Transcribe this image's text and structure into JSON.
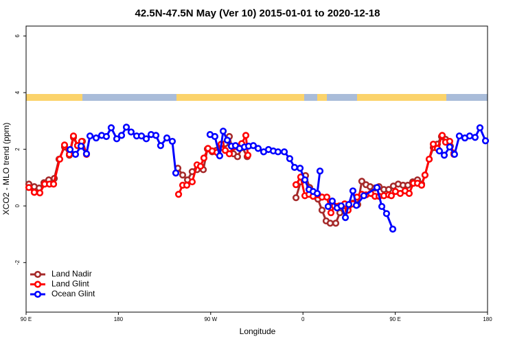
{
  "chart_data": {
    "type": "line",
    "title": "42.5N-47.5N May (Ver 10)   2015-01-01 to 2020-12-18",
    "x_label": "Longitude",
    "y_label": "XCO2 - MLO trend (ppm)",
    "xlim": [
      90,
      540
    ],
    "ylim": [
      -3.75,
      6.35
    ],
    "xticks": [
      {
        "value": 90,
        "label": "90 E"
      },
      {
        "value": 180,
        "label": "180"
      },
      {
        "value": 270,
        "label": "90 W"
      },
      {
        "value": 360,
        "label": "0"
      },
      {
        "value": 450,
        "label": "90 E"
      },
      {
        "value": 540,
        "label": "180"
      }
    ],
    "yticks": [
      -2,
      0,
      2,
      4,
      6
    ],
    "legend": "bottomleft",
    "series": [
      {
        "name": "Land Nadir",
        "color": "#a52a2a",
        "x": [
          92.7,
          98.0,
          102.7,
          107.4,
          112.1,
          117.5,
          122.1,
          127.5,
          132.2,
          136.2,
          140.2,
          144.9,
          148.9,
          null,
          238.0,
          242.7,
          247.4,
          252.0,
          256.7,
          262.8,
          266.8,
          271.5,
          275.5,
          280.2,
          284.2,
          288.2,
          292.2,
          296.2,
          300.9,
          305.6,
          null,
          353.2,
          357.8,
          362.5,
          366.5,
          371.2,
          374.6,
          378.6,
          382.6,
          386.6,
          392.0,
          396.0,
          400.7,
          404.7,
          408.7,
          413.4,
          417.4,
          421.5,
          425.5,
          430.2,
          434.2,
          438.9,
          443.6,
          448.2,
          452.9,
          457.6,
          462.3,
          467.0,
          471.7,
          475.7,
          479.0,
          483.1,
          487.1,
          491.1,
          495.1,
          499.1,
          503.8,
          507.2
        ],
        "values": [
          0.77,
          0.68,
          0.63,
          0.82,
          0.92,
          0.97,
          1.65,
          2.08,
          1.79,
          2.42,
          2.13,
          2.28,
          1.84,
          null,
          1.33,
          1.09,
          0.92,
          1.21,
          1.28,
          1.28,
          2.01,
          1.91,
          1.96,
          2.06,
          2.2,
          2.45,
          1.84,
          1.74,
          2.06,
          1.74,
          null,
          0.29,
          0.85,
          1.07,
          0.65,
          0.44,
          0.24,
          -0.15,
          -0.53,
          -0.61,
          -0.61,
          -0.24,
          -0.17,
          0,
          0.1,
          0.05,
          0.87,
          0.75,
          0.68,
          0.63,
          0.68,
          0.58,
          0.58,
          0.7,
          0.77,
          0.73,
          0.73,
          0.85,
          0.92,
          0.77,
          1.09,
          1.65,
          2.06,
          2.18,
          2.45,
          2.35,
          2.11,
          1.86
        ]
      },
      {
        "name": "Land Glint",
        "color": "#ff0000",
        "x": [
          92.7,
          98.0,
          103.4,
          108.1,
          112.8,
          116.8,
          122.8,
          127.5,
          132.2,
          136.2,
          140.2,
          144.2,
          148.9,
          null,
          238.7,
          242.7,
          246.7,
          252.0,
          256.7,
          260.1,
          263.4,
          267.4,
          271.5,
          276.2,
          280.2,
          284.2,
          288.2,
          292.2,
          296.2,
          300.3,
          304.3,
          306.3,
          null,
          353.2,
          357.8,
          361.9,
          365.9,
          369.9,
          374.6,
          378.6,
          383.3,
          387.3,
          390.7,
          395.3,
          400.7,
          404.0,
          408.7,
          412.7,
          417.4,
          421.5,
          426.1,
          430.2,
          434.2,
          438.9,
          443.6,
          446.2,
          450.2,
          454.9,
          459.6,
          463.6,
          467.7,
          471.7,
          475.7,
          479.0,
          483.1,
          487.1,
          491.1,
          495.8,
          499.1,
          503.1,
          507.2
        ],
        "values": [
          0.65,
          0.48,
          0.46,
          0.77,
          0.77,
          0.77,
          1.65,
          2.15,
          1.82,
          2.47,
          2.13,
          2.28,
          1.82,
          null,
          0.41,
          0.73,
          0.73,
          0.85,
          1.45,
          1.4,
          1.69,
          2.03,
          1.94,
          1.89,
          2.18,
          1.96,
          1.84,
          2.08,
          2.08,
          2.2,
          2.49,
          1.79,
          null,
          0.75,
          1.02,
          0.36,
          0.41,
          0.34,
          0.39,
          0.31,
          0.31,
          -0.24,
          0,
          0,
          0.07,
          -0.15,
          0.07,
          0.31,
          0.41,
          0.39,
          0.44,
          0.34,
          0.34,
          0.36,
          0.39,
          0.36,
          0.51,
          0.44,
          0.53,
          0.44,
          0.8,
          0.8,
          0.73,
          1.09,
          1.65,
          2.18,
          2.03,
          2.49,
          2.25,
          2.28,
          1.82
        ]
      },
      {
        "name": "Ocean Glint",
        "color": "#0000ff",
        "x": [
          132.9,
          138.2,
          143.6,
          148.9,
          152.3,
          158.3,
          163.7,
          168.3,
          173.0,
          178.4,
          183.1,
          187.8,
          192.4,
          197.8,
          202.5,
          207.2,
          211.9,
          216.6,
          221.2,
          227.3,
          232.6,
          236.0,
          null,
          269.4,
          274.1,
          278.8,
          282.2,
          286.2,
          290.2,
          294.2,
          298.2,
          302.9,
          307.0,
          311.6,
          316.3,
          321.7,
          326.4,
          331.1,
          335.7,
          341.8,
          347.1,
          351.8,
          357.2,
          361.9,
          365.9,
          369.9,
          373.9,
          376.6,
          null,
          384.6,
          388.6,
          393.3,
          397.3,
          401.4,
          404.7,
          408.7,
          412.1,
          419.4,
          432.2,
          436.9,
          441.5,
          447.6,
          null,
          493.1,
          497.8,
          503.1,
          507.8,
          512.5,
          517.9,
          522.6,
          527.9,
          532.6,
          538.0
        ],
        "values": [
          1.99,
          1.82,
          2.11,
          1.84,
          2.47,
          2.4,
          2.49,
          2.45,
          2.76,
          2.37,
          2.49,
          2.78,
          2.61,
          2.47,
          2.47,
          2.37,
          2.52,
          2.49,
          2.13,
          2.4,
          2.28,
          1.16,
          null,
          2.52,
          2.45,
          1.77,
          2.64,
          2.32,
          2.11,
          2.13,
          2.03,
          2.08,
          2.11,
          2.13,
          2.03,
          1.91,
          1.99,
          1.94,
          1.91,
          1.91,
          1.67,
          1.36,
          1.33,
          0.92,
          0.58,
          0.51,
          0.44,
          1.23,
          null,
          -0.02,
          0.17,
          -0.07,
          0,
          -0.41,
          0.05,
          0.53,
          0.02,
          0.36,
          0.65,
          -0.02,
          -0.27,
          -0.82,
          null,
          1.94,
          1.79,
          2.08,
          1.82,
          2.47,
          2.4,
          2.47,
          2.42,
          2.76,
          2.3
        ]
      }
    ]
  }
}
